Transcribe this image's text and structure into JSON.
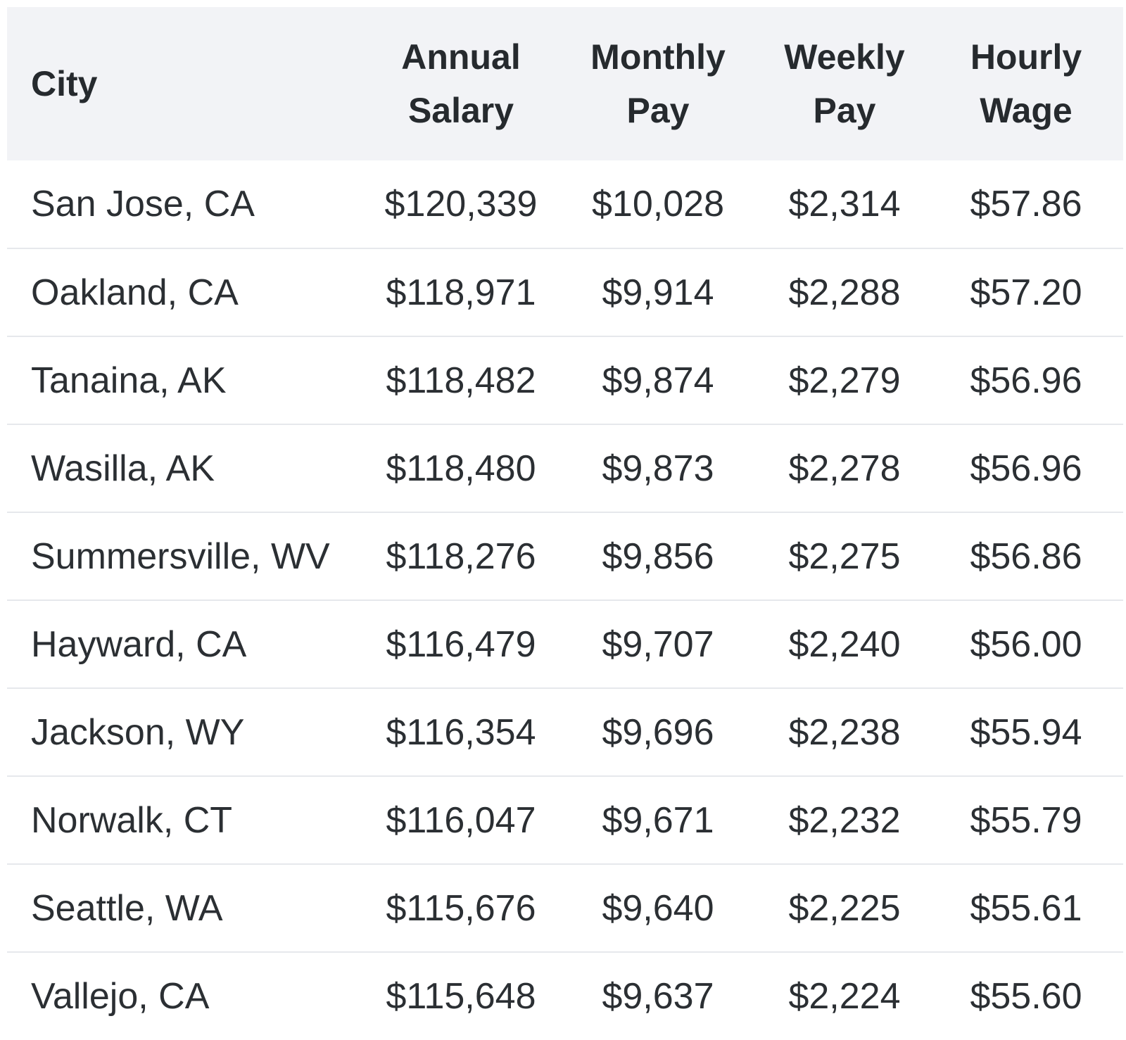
{
  "table": {
    "headers": {
      "city": "City",
      "annual": [
        "Annual",
        "Salary"
      ],
      "monthly": [
        "Monthly",
        "Pay"
      ],
      "weekly": [
        "Weekly",
        "Pay"
      ],
      "hourly": [
        "Hourly",
        "Wage"
      ]
    },
    "rows": [
      {
        "city": "San Jose, CA",
        "annual": "$120,339",
        "monthly": "$10,028",
        "weekly": "$2,314",
        "hourly": "$57.86"
      },
      {
        "city": "Oakland, CA",
        "annual": "$118,971",
        "monthly": "$9,914",
        "weekly": "$2,288",
        "hourly": "$57.20"
      },
      {
        "city": "Tanaina, AK",
        "annual": "$118,482",
        "monthly": "$9,874",
        "weekly": "$2,279",
        "hourly": "$56.96"
      },
      {
        "city": "Wasilla, AK",
        "annual": "$118,480",
        "monthly": "$9,873",
        "weekly": "$2,278",
        "hourly": "$56.96"
      },
      {
        "city": "Summersville, WV",
        "annual": "$118,276",
        "monthly": "$9,856",
        "weekly": "$2,275",
        "hourly": "$56.86"
      },
      {
        "city": "Hayward, CA",
        "annual": "$116,479",
        "monthly": "$9,707",
        "weekly": "$2,240",
        "hourly": "$56.00"
      },
      {
        "city": "Jackson, WY",
        "annual": "$116,354",
        "monthly": "$9,696",
        "weekly": "$2,238",
        "hourly": "$55.94"
      },
      {
        "city": "Norwalk, CT",
        "annual": "$116,047",
        "monthly": "$9,671",
        "weekly": "$2,232",
        "hourly": "$55.79"
      },
      {
        "city": "Seattle, WA",
        "annual": "$115,676",
        "monthly": "$9,640",
        "weekly": "$2,225",
        "hourly": "$55.61"
      },
      {
        "city": "Vallejo, CA",
        "annual": "$115,648",
        "monthly": "$9,637",
        "weekly": "$2,224",
        "hourly": "$55.60"
      }
    ]
  }
}
